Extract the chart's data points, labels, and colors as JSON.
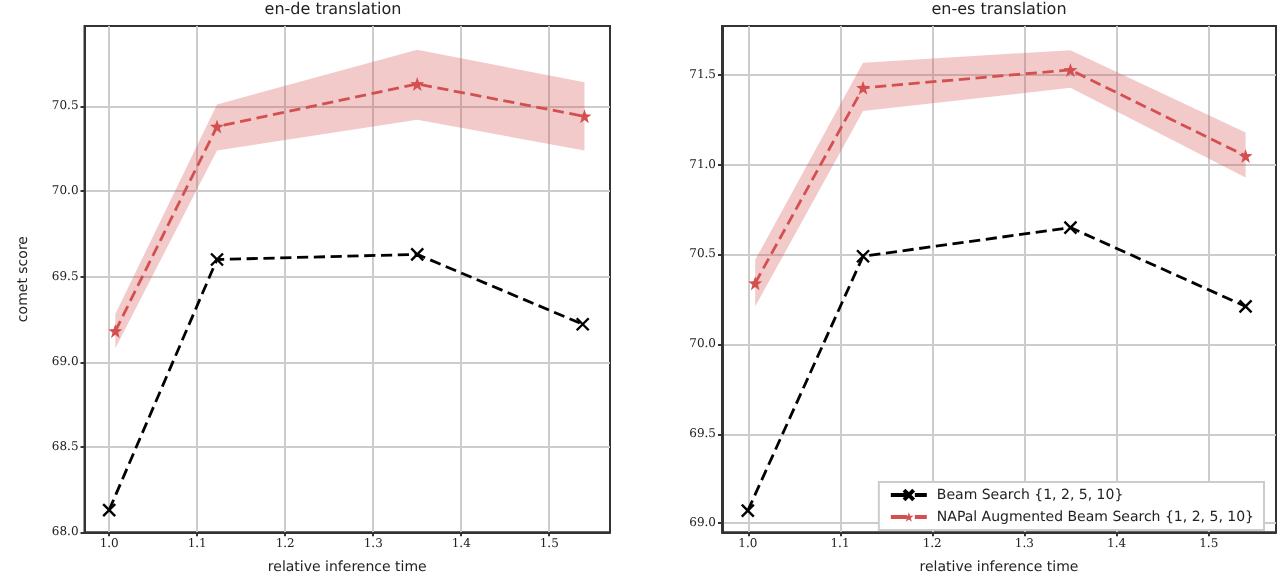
{
  "chart_data": [
    {
      "type": "line",
      "title": "en-de translation",
      "xlabel": "relative inference time",
      "ylabel": "comet score",
      "xlim": [
        0.972,
        1.569
      ],
      "xticks": [
        {
          "value": 1,
          "label": "1.0"
        },
        1.1,
        1.2,
        1.3,
        1.4,
        1.5
      ],
      "ylim": [
        68.0,
        70.97
      ],
      "yticks": [
        {
          "value": 68,
          "label": "68.0"
        },
        68.5,
        {
          "value": 69,
          "label": "69.0"
        },
        69.5,
        {
          "value": 70,
          "label": "70.0"
        },
        70.5
      ],
      "grid": true,
      "legend": false,
      "line_style": "dashed",
      "series": [
        {
          "color": "#000000",
          "marker": "cross",
          "x": [
            1.0,
            1.1225,
            1.35,
            1.538
          ],
          "values": [
            68.13,
            69.6,
            69.63,
            69.22
          ]
        },
        {
          "color": "#d45050",
          "marker": "star",
          "x": [
            1.007,
            1.1225,
            1.35,
            1.54
          ],
          "values": [
            69.18,
            70.38,
            70.63,
            70.44
          ],
          "lower": [
            69.08,
            70.24,
            70.42,
            70.24
          ],
          "upper": [
            69.28,
            70.51,
            70.83,
            70.64
          ]
        }
      ]
    },
    {
      "type": "line",
      "title": "en-es translation",
      "xlabel": "relative inference time",
      "xlim": [
        0.972,
        1.573
      ],
      "xticks": [
        {
          "value": 1,
          "label": "1.0"
        },
        1.1,
        1.2,
        1.3,
        1.4,
        1.5
      ],
      "ylim": [
        68.95,
        71.775
      ],
      "yticks": [
        {
          "value": 69,
          "label": "69.0"
        },
        69.5,
        {
          "value": 70,
          "label": "70.0"
        },
        70.5,
        {
          "value": 71,
          "label": "71.0"
        },
        71.5
      ],
      "grid": true,
      "legend": "bottom right",
      "line_style": "dashed",
      "series": [
        {
          "name": "Beam Search {1, 2, 5, 10}",
          "color": "#000000",
          "marker": "cross",
          "x": [
            1.0,
            1.125,
            1.35,
            1.54
          ],
          "values": [
            69.07,
            70.49,
            70.65,
            70.21
          ]
        },
        {
          "name": "NAPal Augmented Beam Search {1, 2, 5, 10}",
          "color": "#d45050",
          "marker": "star",
          "x": [
            1.008,
            1.125,
            1.35,
            1.54
          ],
          "values": [
            70.34,
            71.43,
            71.53,
            71.05
          ],
          "lower": [
            70.21,
            71.3,
            71.43,
            70.93
          ],
          "upper": [
            70.47,
            71.57,
            71.64,
            71.18
          ]
        }
      ]
    }
  ]
}
